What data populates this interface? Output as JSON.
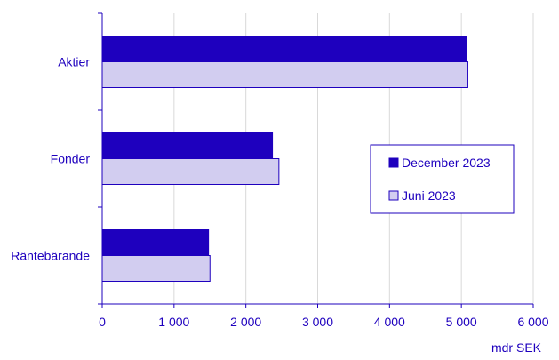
{
  "chart_data": {
    "type": "bar",
    "orientation": "horizontal",
    "categories": [
      "Aktier",
      "Fonder",
      "Räntebärande"
    ],
    "series": [
      {
        "name": "December 2023",
        "values": [
          5070,
          2370,
          1480
        ],
        "color": "#1e00be"
      },
      {
        "name": "Juni 2023",
        "values": [
          5090,
          2460,
          1500
        ],
        "color": "#d2cdf0"
      }
    ],
    "xlabel": "mdr SEK",
    "xlim": [
      0,
      6000
    ],
    "xticks": [
      0,
      1000,
      2000,
      3000,
      4000,
      5000,
      6000
    ],
    "xtick_labels": [
      "0",
      "1 000",
      "2 000",
      "3 000",
      "4 000",
      "5 000",
      "6 000"
    ],
    "grid": "vertical",
    "legend": "right",
    "axis_color": "#1e00be",
    "grid_color": "#d9d9d9",
    "text_color": "#1e00be"
  }
}
